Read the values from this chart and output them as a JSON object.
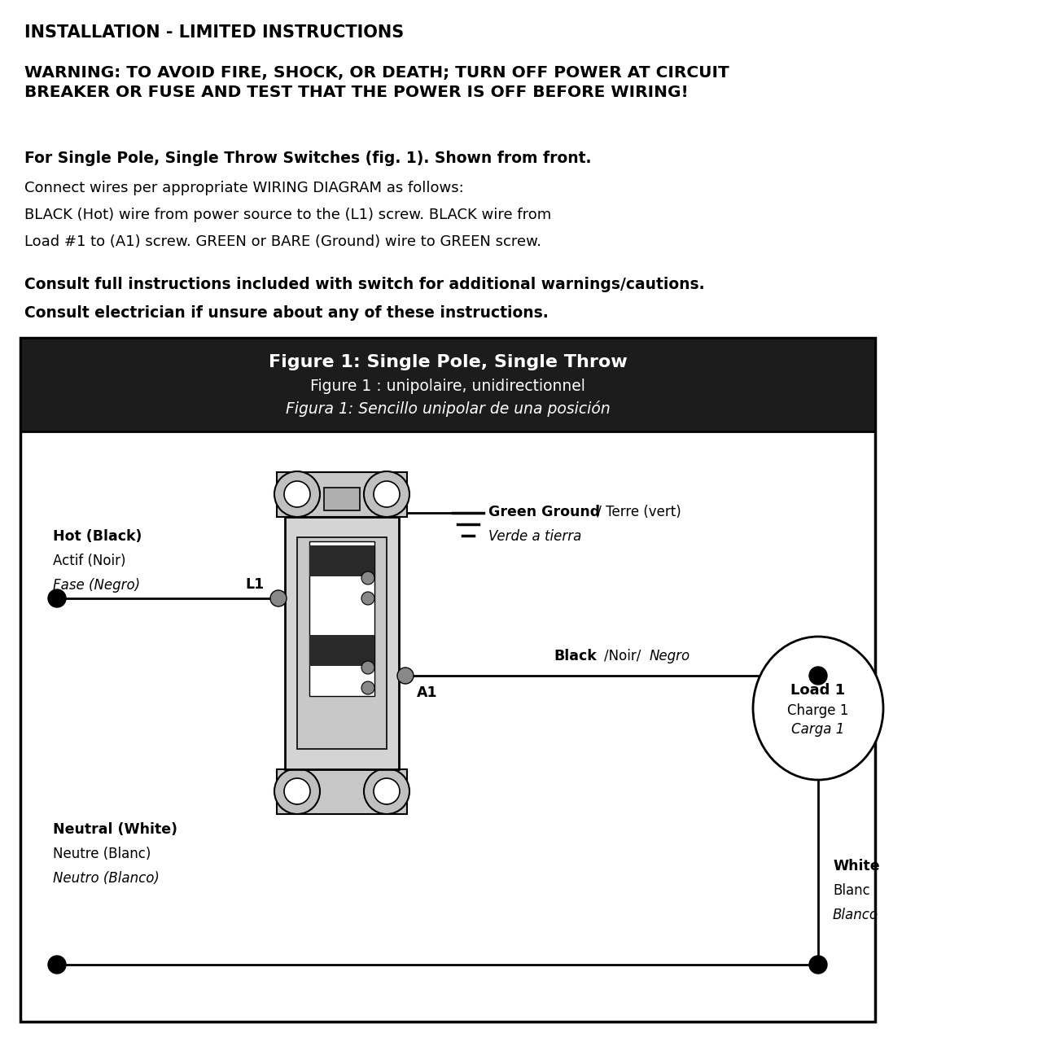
{
  "title_line1": "INSTALLATION - LIMITED INSTRUCTIONS",
  "warning_text": "WARNING: TO AVOID FIRE, SHOCK, OR DEATH; TURN OFF POWER AT CIRCUIT\nBREAKER OR FUSE AND TEST THAT THE POWER IS OFF BEFORE WIRING!",
  "para1_bold": "For Single Pole, Single Throw Switches (fig. 1). Shown from front.",
  "para1_normal1": "Connect wires per appropriate WIRING DIAGRAM as follows:",
  "para1_normal2": "BLACK (Hot) wire from power source to the (L1) screw. BLACK wire from",
  "para1_normal3": "Load #1 to (A1) screw. GREEN or BARE (Ground) wire to GREEN screw.",
  "para2_bold1": "Consult full instructions included with switch for additional warnings/cautions.",
  "para2_bold2": "Consult electrician if unsure about any of these instructions.",
  "fig_title1": "Figure 1: Single Pole, Single Throw",
  "fig_title2": "Figure 1 : unipolaire, unidirectionnel",
  "fig_title3": "Figura 1: Sencillo unipolar de una posición",
  "label_hot_bold": "Hot (Black)",
  "label_hot_normal": "Actif (Noir)",
  "label_hot_italic": "Fase (Negro)",
  "label_l1": "L1",
  "label_a1": "A1",
  "label_ground_bold": "Green Ground",
  "label_ground_sep": " / ",
  "label_ground_normal": "Terre (vert)",
  "label_ground_italic": "Verde a tierra",
  "label_black_bold": "Black",
  "label_black_sep": "/Noir/",
  "label_black_italic": "Negro",
  "label_neutral_bold": "Neutral (White)",
  "label_neutral_normal": "Neutre (Blanc)",
  "label_neutral_italic": "Neutro (Blanco)",
  "label_load_bold": "Load 1",
  "label_load_normal": "Charge 1",
  "label_load_italic": "Carga 1",
  "label_white_bold": "White",
  "label_white_normal": "Blanc",
  "label_white_italic": "Blanco",
  "bg_color": "#ffffff",
  "fig_header_bg": "#1c1c1c",
  "diagram_border": "#000000",
  "wire_color": "#000000",
  "switch_body_color": "#d4d4d4",
  "switch_inner_color": "#c0c0c0",
  "switch_paddle_color": "#f0f0f0"
}
